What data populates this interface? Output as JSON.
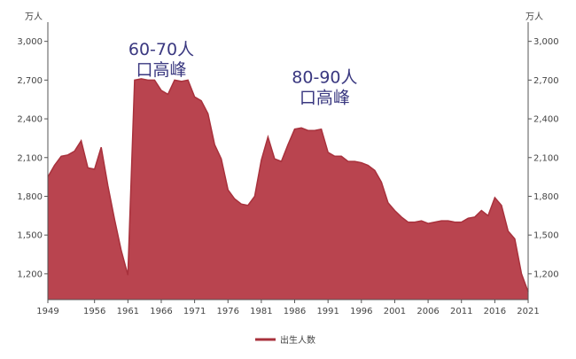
{
  "chart_data": {
    "type": "area",
    "title": "",
    "xlabel": "",
    "ylabel": "",
    "unit_left": "万人",
    "unit_right": "万人",
    "color": "#b9444f",
    "stroke_color": "#a8313c",
    "ylim": [
      1000,
      3080
    ],
    "yticks": [
      1200,
      1500,
      1800,
      2100,
      2400,
      2700,
      3000
    ],
    "ytick_labels": [
      "1,200",
      "1,500",
      "1,800",
      "2,100",
      "2,400",
      "2,700",
      "3,000"
    ],
    "xlim": [
      1949,
      2021
    ],
    "xticks": [
      1949,
      1956,
      1961,
      1966,
      1971,
      1976,
      1981,
      1986,
      1991,
      1996,
      2001,
      2006,
      2011,
      2016,
      2021
    ],
    "xtick_labels": [
      "1949",
      "1956",
      "1961",
      "1966",
      "1971",
      "1976",
      "1981",
      "1986",
      "1991",
      "1996",
      "2001",
      "2006",
      "2011",
      "2016",
      "2021"
    ],
    "grid": false,
    "legend_position": "bottom",
    "series": [
      {
        "name": "出生人数",
        "x": [
          1949,
          1950,
          1951,
          1952,
          1953,
          1954,
          1955,
          1956,
          1957,
          1958,
          1959,
          1960,
          1961,
          1962,
          1963,
          1964,
          1965,
          1966,
          1967,
          1968,
          1969,
          1970,
          1971,
          1972,
          1973,
          1974,
          1975,
          1976,
          1977,
          1978,
          1979,
          1980,
          1981,
          1982,
          1983,
          1984,
          1985,
          1986,
          1987,
          1988,
          1989,
          1990,
          1991,
          1992,
          1993,
          1994,
          1995,
          1996,
          1997,
          1998,
          1999,
          2000,
          2001,
          2002,
          2003,
          2004,
          2005,
          2006,
          2007,
          2008,
          2009,
          2010,
          2011,
          2012,
          2013,
          2014,
          2015,
          2016,
          2017,
          2018,
          2019,
          2020,
          2021
        ],
        "values": [
          1950,
          2040,
          2110,
          2120,
          2150,
          2230,
          2020,
          2010,
          2180,
          1880,
          1620,
          1380,
          1190,
          2700,
          2710,
          2700,
          2700,
          2620,
          2590,
          2700,
          2690,
          2700,
          2570,
          2540,
          2440,
          2200,
          2090,
          1850,
          1780,
          1740,
          1730,
          1800,
          2080,
          2260,
          2090,
          2070,
          2200,
          2320,
          2330,
          2310,
          2310,
          2320,
          2140,
          2110,
          2110,
          2070,
          2070,
          2060,
          2040,
          2000,
          1910,
          1750,
          1690,
          1640,
          1600,
          1600,
          1610,
          1590,
          1600,
          1610,
          1610,
          1600,
          1600,
          1630,
          1640,
          1690,
          1650,
          1790,
          1730,
          1530,
          1470,
          1200,
          1060
        ]
      }
    ],
    "annotations": [
      {
        "lines": [
          "60-70人",
          "口高峰"
        ],
        "x": 1966,
        "y": 2895
      },
      {
        "lines": [
          "80-90人",
          "口高峰"
        ],
        "x": 1990.5,
        "y": 2680
      }
    ]
  }
}
